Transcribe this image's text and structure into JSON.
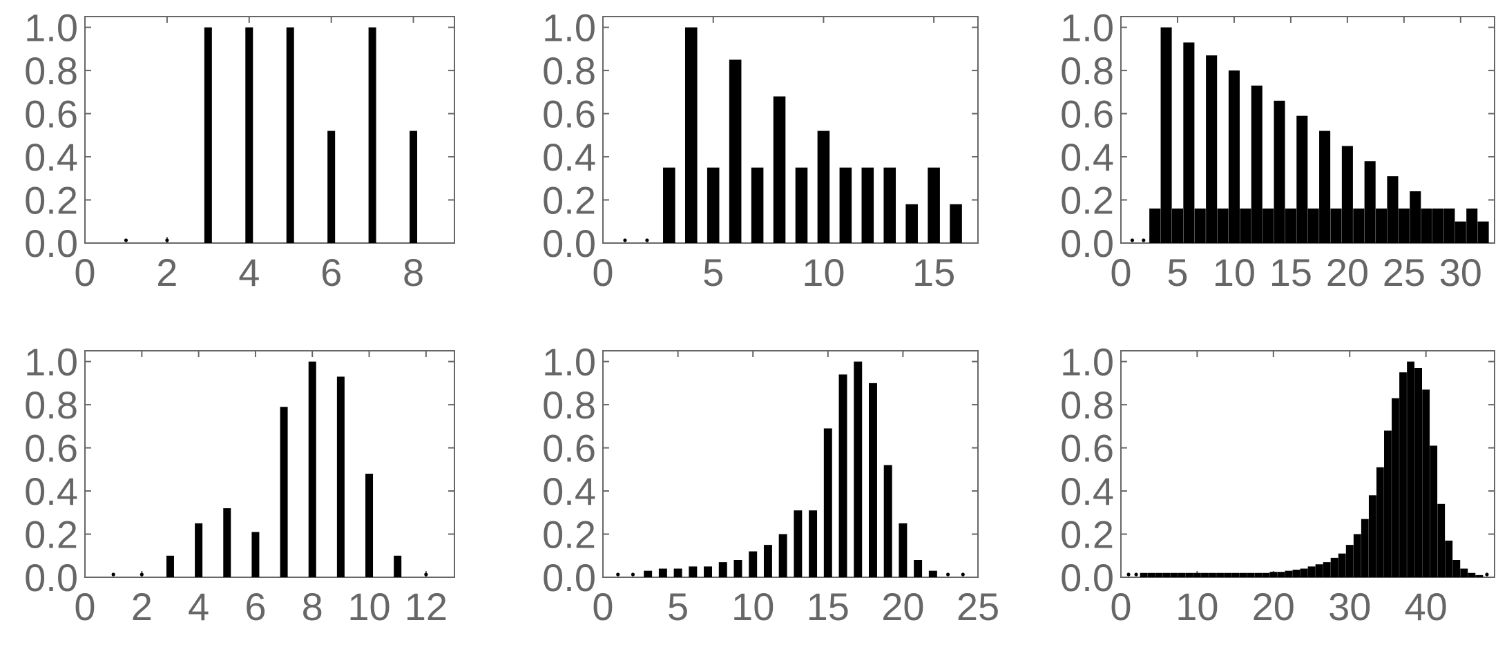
{
  "colors": {
    "bar": "#000000",
    "frame": "#666666",
    "tick_text": "#666666"
  },
  "chart_data": [
    {
      "type": "bar",
      "xlim": [
        0,
        9
      ],
      "ylim": [
        0,
        1.05
      ],
      "xticks": [
        0,
        2,
        4,
        6,
        8
      ],
      "yticks": [
        0.0,
        0.2,
        0.4,
        0.6,
        0.8,
        1.0
      ],
      "x": [
        1,
        2,
        3,
        4,
        5,
        6,
        7,
        8
      ],
      "values": [
        0.0,
        0.0,
        1.0,
        1.0,
        1.0,
        0.52,
        1.0,
        0.52
      ],
      "grid": false
    },
    {
      "type": "bar",
      "xlim": [
        0,
        17
      ],
      "ylim": [
        0,
        1.05
      ],
      "xticks": [
        0,
        5,
        10,
        15
      ],
      "yticks": [
        0.0,
        0.2,
        0.4,
        0.6,
        0.8,
        1.0
      ],
      "x": [
        1,
        2,
        3,
        4,
        5,
        6,
        7,
        8,
        9,
        10,
        11,
        12,
        13,
        14,
        15,
        16
      ],
      "values": [
        0.0,
        0.0,
        0.35,
        1.0,
        0.35,
        0.85,
        0.35,
        0.68,
        0.35,
        0.52,
        0.35,
        0.35,
        0.35,
        0.18,
        0.35,
        0.18
      ],
      "grid": false
    },
    {
      "type": "bar",
      "xlim": [
        0,
        33
      ],
      "ylim": [
        0,
        1.05
      ],
      "xticks": [
        0,
        5,
        10,
        15,
        20,
        25,
        30
      ],
      "yticks": [
        0.0,
        0.2,
        0.4,
        0.6,
        0.8,
        1.0
      ],
      "x": [
        1,
        2,
        3,
        4,
        5,
        6,
        7,
        8,
        9,
        10,
        11,
        12,
        13,
        14,
        15,
        16,
        17,
        18,
        19,
        20,
        21,
        22,
        23,
        24,
        25,
        26,
        27,
        28,
        29,
        30,
        31,
        32
      ],
      "values": [
        0.0,
        0.0,
        0.16,
        1.0,
        0.16,
        0.93,
        0.16,
        0.87,
        0.16,
        0.8,
        0.16,
        0.73,
        0.16,
        0.66,
        0.16,
        0.59,
        0.16,
        0.52,
        0.16,
        0.45,
        0.16,
        0.38,
        0.16,
        0.31,
        0.16,
        0.24,
        0.16,
        0.16,
        0.16,
        0.1,
        0.16,
        0.1
      ],
      "grid": false
    },
    {
      "type": "bar",
      "xlim": [
        0,
        13
      ],
      "ylim": [
        0,
        1.05
      ],
      "xticks": [
        0,
        2,
        4,
        6,
        8,
        10,
        12
      ],
      "yticks": [
        0.0,
        0.2,
        0.4,
        0.6,
        0.8,
        1.0
      ],
      "x": [
        1,
        2,
        3,
        4,
        5,
        6,
        7,
        8,
        9,
        10,
        11,
        12
      ],
      "values": [
        0.0,
        0.0,
        0.1,
        0.25,
        0.32,
        0.21,
        0.79,
        1.0,
        0.93,
        0.48,
        0.1,
        0.0
      ],
      "grid": false
    },
    {
      "type": "bar",
      "xlim": [
        0,
        25
      ],
      "ylim": [
        0,
        1.05
      ],
      "xticks": [
        0,
        5,
        10,
        15,
        20,
        25
      ],
      "yticks": [
        0.0,
        0.2,
        0.4,
        0.6,
        0.8,
        1.0
      ],
      "x": [
        1,
        2,
        3,
        4,
        5,
        6,
        7,
        8,
        9,
        10,
        11,
        12,
        13,
        14,
        15,
        16,
        17,
        18,
        19,
        20,
        21,
        22,
        23,
        24
      ],
      "values": [
        0.0,
        0.0,
        0.03,
        0.04,
        0.04,
        0.05,
        0.05,
        0.07,
        0.08,
        0.12,
        0.15,
        0.2,
        0.31,
        0.31,
        0.69,
        0.94,
        1.0,
        0.9,
        0.52,
        0.25,
        0.08,
        0.03,
        0.0,
        0.0
      ],
      "grid": false
    },
    {
      "type": "bar",
      "xlim": [
        0,
        49
      ],
      "ylim": [
        0,
        1.05
      ],
      "xticks": [
        0,
        10,
        20,
        30,
        40
      ],
      "yticks": [
        0.0,
        0.2,
        0.4,
        0.6,
        0.8,
        1.0
      ],
      "x": [
        1,
        2,
        3,
        4,
        5,
        6,
        7,
        8,
        9,
        10,
        11,
        12,
        13,
        14,
        15,
        16,
        17,
        18,
        19,
        20,
        21,
        22,
        23,
        24,
        25,
        26,
        27,
        28,
        29,
        30,
        31,
        32,
        33,
        34,
        35,
        36,
        37,
        38,
        39,
        40,
        41,
        42,
        43,
        44,
        45,
        46,
        47,
        48
      ],
      "values": [
        0.0,
        0.0,
        0.02,
        0.02,
        0.02,
        0.02,
        0.02,
        0.02,
        0.02,
        0.02,
        0.02,
        0.02,
        0.02,
        0.02,
        0.02,
        0.02,
        0.02,
        0.02,
        0.02,
        0.025,
        0.025,
        0.03,
        0.035,
        0.04,
        0.05,
        0.06,
        0.07,
        0.09,
        0.11,
        0.15,
        0.2,
        0.27,
        0.38,
        0.51,
        0.68,
        0.83,
        0.95,
        1.0,
        0.97,
        0.87,
        0.61,
        0.34,
        0.17,
        0.08,
        0.04,
        0.02,
        0.01,
        0.0
      ],
      "grid": false
    }
  ]
}
